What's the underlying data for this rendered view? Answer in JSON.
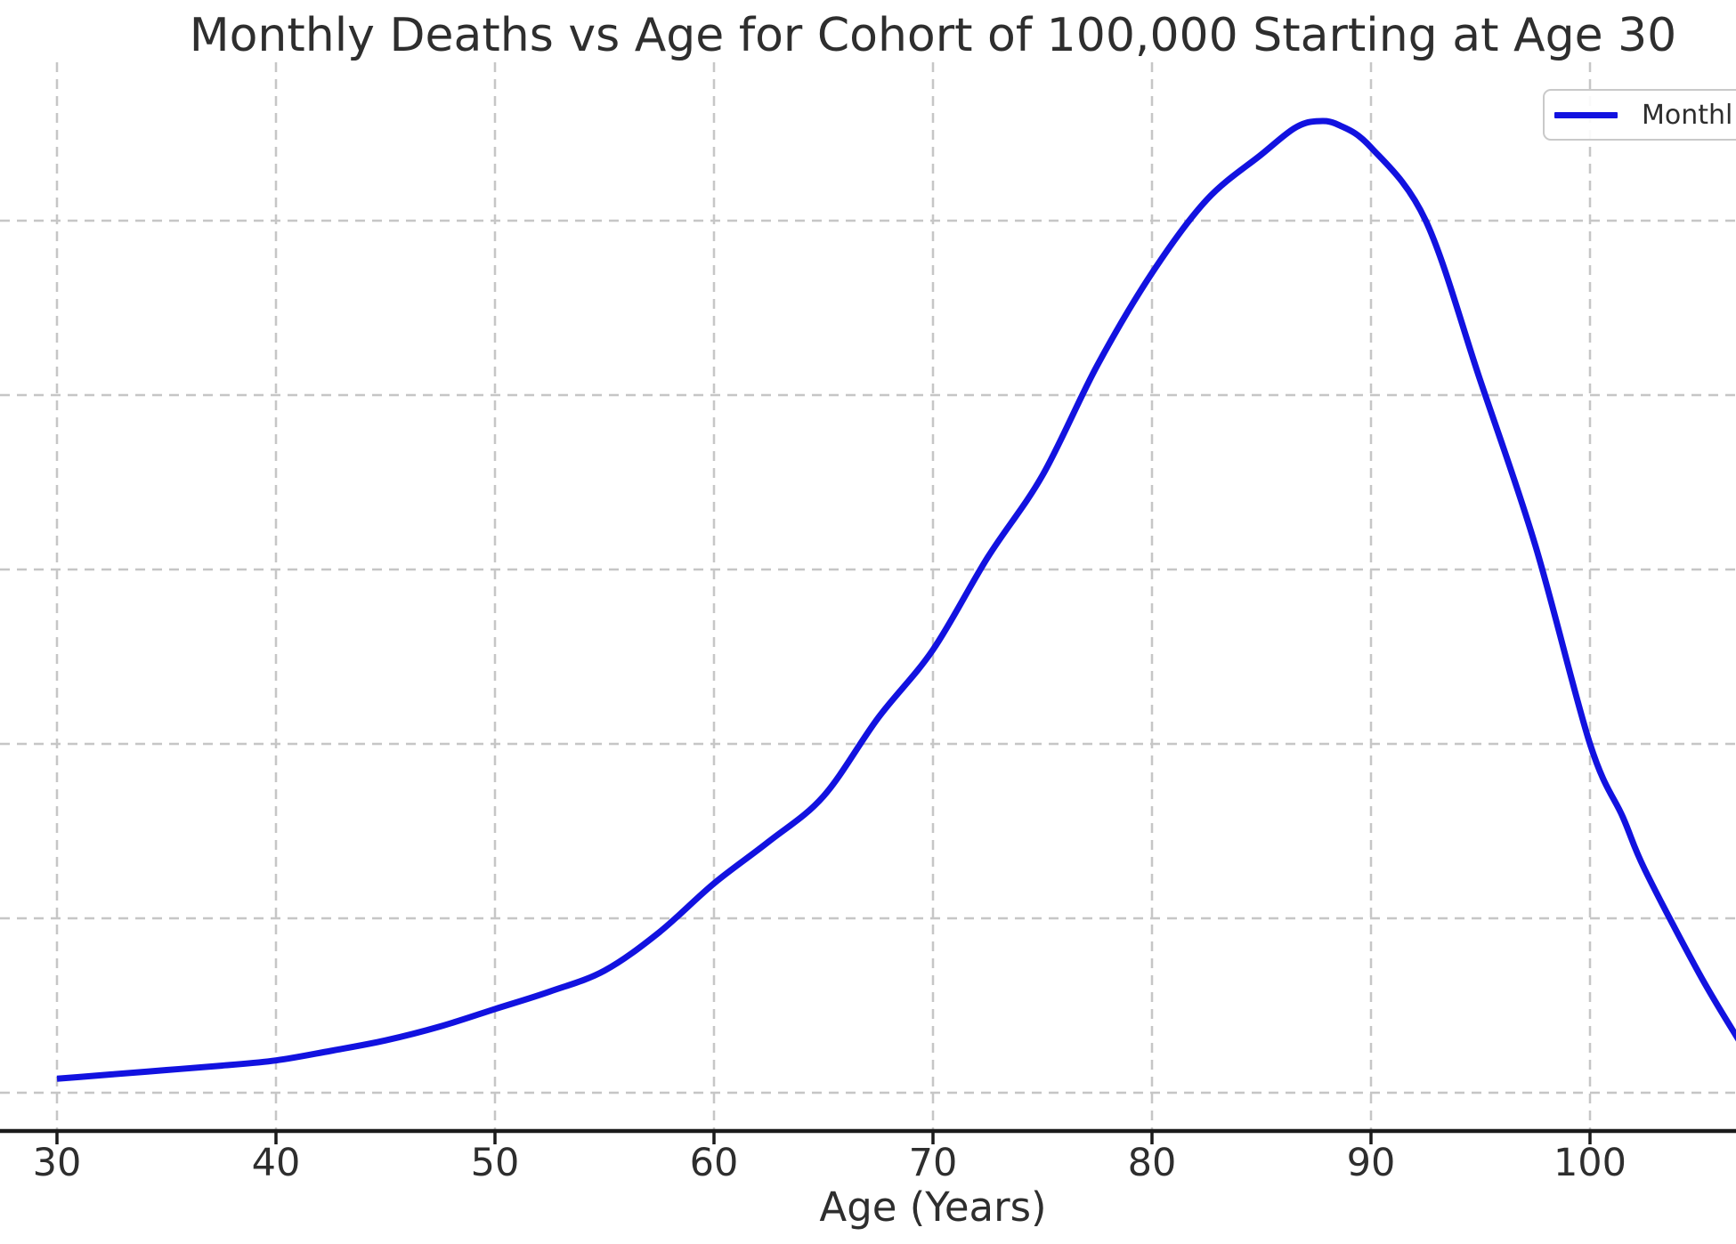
{
  "title": "Monthly Deaths vs Age for Cohort of 100,000 Starting at Age 30",
  "xlabel": "Age (Years)",
  "legend": {
    "visible_label": "Monthl",
    "position": "upper right",
    "clipped_by_image_edge": true
  },
  "colors": {
    "line": "#1212e0",
    "grid": "#c6c6c6",
    "axis": "#1a1a1a",
    "text": "#2e2e2e",
    "background": "#ffffff",
    "legend_border": "#c9c9c9"
  },
  "chart_data": {
    "type": "line",
    "title": "Monthly Deaths vs Age for Cohort of 100,000 Starting at Age 30",
    "xlabel": "Age (Years)",
    "ylabel": "",
    "series": [
      {
        "name": "Monthly Deaths",
        "color": "#1212e0",
        "x": [
          30,
          31,
          32.5,
          35,
          37.5,
          40,
          42.5,
          45,
          47.5,
          50,
          52.5,
          55,
          57.5,
          60,
          62.5,
          65,
          67.5,
          70,
          72.5,
          75,
          77.5,
          80,
          82.5,
          85,
          86.5,
          87.5,
          88.5,
          90,
          92.5,
          95,
          97.5,
          100,
          101.5,
          102.5,
          105,
          106.8
        ],
        "y": [
          8,
          9,
          10.5,
          13,
          15.5,
          18.5,
          24,
          30,
          38,
          48,
          58,
          70,
          92,
          120,
          144,
          170,
          215,
          254,
          307,
          354,
          417,
          470,
          512,
          538,
          553,
          557,
          555,
          542,
          500,
          408,
          314,
          200,
          158,
          128,
          68,
          30
        ]
      }
    ],
    "peak": {
      "age": 87.5,
      "value": 557
    },
    "x_ticks": [
      30,
      40,
      50,
      60,
      70,
      80,
      90,
      100
    ],
    "y_gridline_values": [
      0,
      100,
      200,
      300,
      400,
      500
    ],
    "y_tick_labels_visible": false,
    "xlim": [
      27.4,
      106.8
    ],
    "ylim": [
      -21,
      591
    ],
    "grid": "dashed",
    "legend_position": "upper right"
  }
}
